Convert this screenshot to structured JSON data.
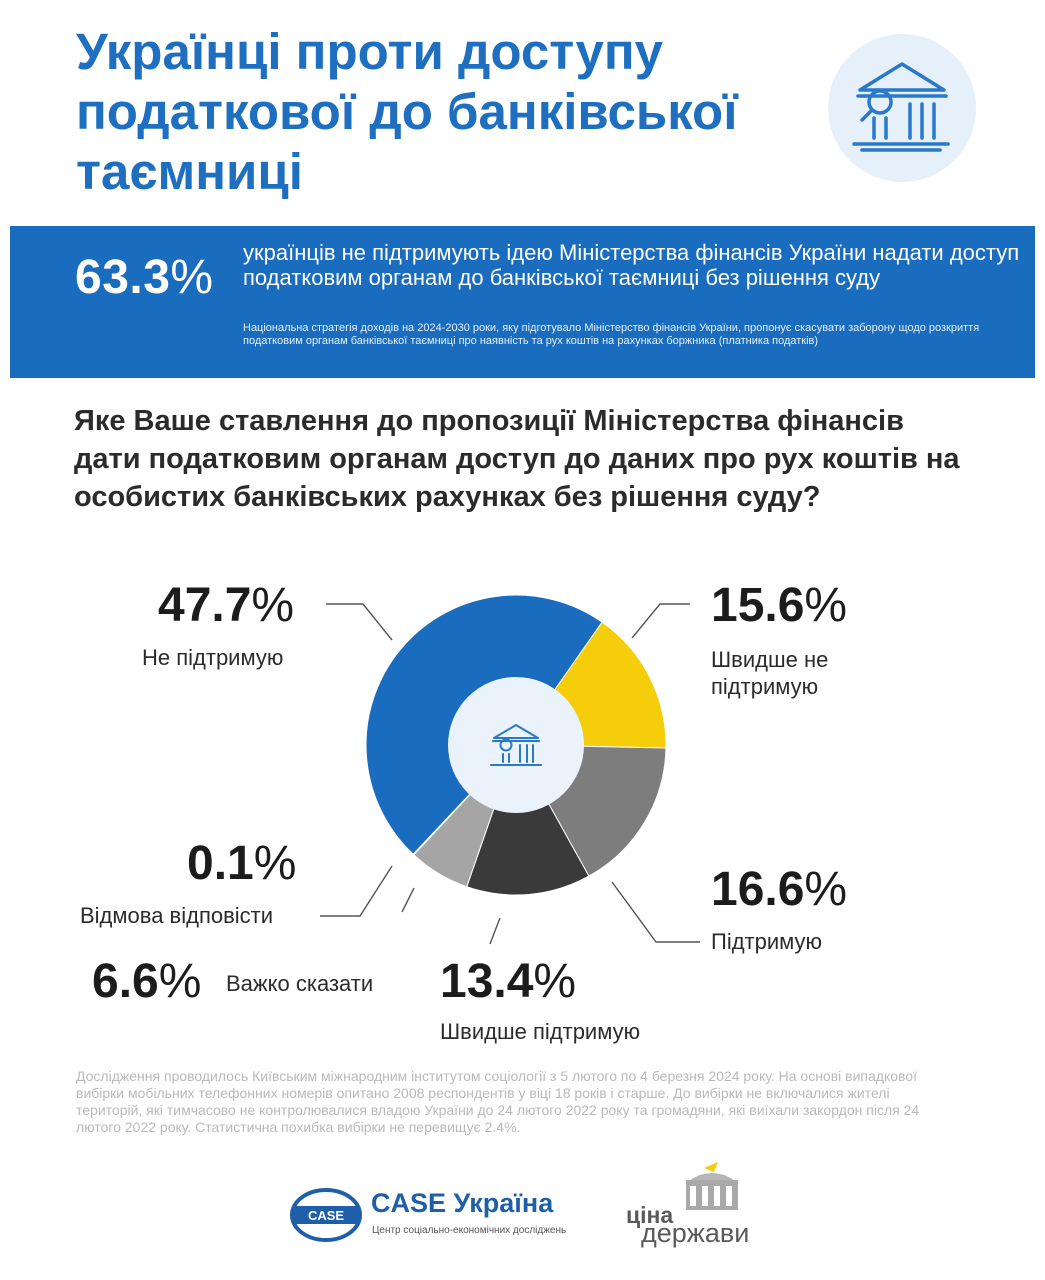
{
  "header": {
    "title": "Українці проти доступу податкової до банківської таємниці"
  },
  "banner": {
    "value": "63.3",
    "unit": "%",
    "text": "українців не підтримують ідею Міністерства фінансів України надати доступ податковим органам до банківської таємниці без рішення суду",
    "note": "Національна стратегія доходів на 2024-2030 роки, яку підготувало Міністерство фінансів України, пропонує скасувати заборону щодо розкриття податковим органам банківської таємниці про наявність та рух коштів на рахунках боржника (платника податків)"
  },
  "question": "Яке Ваше ставлення до пропозиції Міністерства фінансів дати податковим органам доступ до даних про рух коштів на особистих банківських рахунках без рішення суду?",
  "chart_data": {
    "type": "pie",
    "slices": [
      {
        "label": "Швидше не підтримую",
        "value": 15.6,
        "value_text": "15.6",
        "color": "#f6cd0b"
      },
      {
        "label": "Підтримую",
        "value": 16.6,
        "value_text": "16.6",
        "color": "#7d7d7d"
      },
      {
        "label": "Швидше підтримую",
        "value": 13.4,
        "value_text": "13.4",
        "color": "#3a3a3a"
      },
      {
        "label": "Важко сказати",
        "value": 6.6,
        "value_text": "6.6",
        "color": "#a5a5a5"
      },
      {
        "label": "Відмова відповісти",
        "value": 0.1,
        "value_text": "0.1",
        "color": "#1c1c1c"
      },
      {
        "label": "Не підтримую",
        "value": 47.7,
        "value_text": "47.7",
        "color": "#1a6cbf"
      }
    ],
    "unit": "%"
  },
  "footnote": "Дослідження проводилось Київським міжнародним інститутом соціології з 5 лютого по 4 березня 2024 року.  На основі випадкової вибірки мобільних телефонних номерів опитано 2008 респондентів у віці 18 років і старше.  До вибірки не включалися жителі територій, які тимчасово не контролювалися владою України до 24 лютого 2022 року та громадяни, які виїхали закордон після 24 лютого 2022 року.  Статистична похибка вибірки не перевищує 2.4%.",
  "logos": {
    "case_badge": "CASE",
    "case_title": "CASE Україна",
    "case_subtitle": "Центр соціально-економічних досліджень",
    "cina_top": "ціна",
    "cina_bottom": "держави"
  },
  "colors": {
    "brand_blue": "#1a6cbf",
    "title_blue": "#1f6fc0",
    "yellow": "#f6cd0b"
  }
}
